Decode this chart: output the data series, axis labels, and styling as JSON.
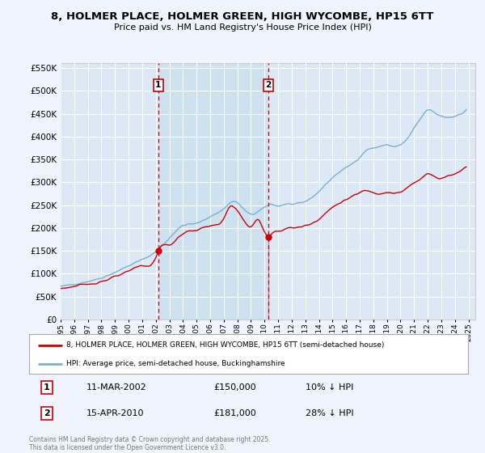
{
  "title": "8, HOLMER PLACE, HOLMER GREEN, HIGH WYCOMBE, HP15 6TT",
  "subtitle": "Price paid vs. HM Land Registry's House Price Index (HPI)",
  "bg_color": "#f0f4ff",
  "plot_bg_color": "#dce8f5",
  "grid_color": "#ffffff",
  "shade_color": "#c8dff0",
  "transaction1_date": "11-MAR-2002",
  "transaction1_price": 150000,
  "transaction1_hpi_text": "10% ↓ HPI",
  "transaction2_date": "15-APR-2010",
  "transaction2_price": 181000,
  "transaction2_hpi_text": "28% ↓ HPI",
  "legend_label_property": "8, HOLMER PLACE, HOLMER GREEN, HIGH WYCOMBE, HP15 6TT (semi-detached house)",
  "legend_label_hpi": "HPI: Average price, semi-detached house, Buckinghamshire",
  "footer": "Contains HM Land Registry data © Crown copyright and database right 2025.\nThis data is licensed under the Open Government Licence v3.0.",
  "ylim": [
    0,
    560000
  ],
  "yticks": [
    0,
    50000,
    100000,
    150000,
    200000,
    250000,
    300000,
    350000,
    400000,
    450000,
    500000,
    550000
  ],
  "property_color": "#cc0000",
  "hpi_color": "#7ab0d4",
  "vline_color": "#cc0000",
  "marker1_year": 2002.19,
  "marker1_price": 150000,
  "marker2_year": 2010.29,
  "marker2_price": 181000,
  "xlim_start": 1995,
  "xlim_end": 2025.5,
  "xtick_years": [
    1995,
    1996,
    1997,
    1998,
    1999,
    2000,
    2001,
    2002,
    2003,
    2004,
    2005,
    2006,
    2007,
    2008,
    2009,
    2010,
    2011,
    2012,
    2013,
    2014,
    2015,
    2016,
    2017,
    2018,
    2019,
    2020,
    2021,
    2022,
    2023,
    2024,
    2025
  ]
}
